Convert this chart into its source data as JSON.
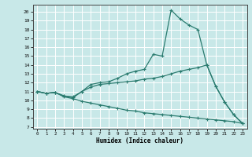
{
  "xlabel": "Humidex (Indice chaleur)",
  "bg_color": "#c8e8e8",
  "grid_color": "#ffffff",
  "line_color": "#2a7b6f",
  "xlim": [
    -0.5,
    23.5
  ],
  "ylim": [
    6.8,
    20.8
  ],
  "yticks": [
    7,
    8,
    9,
    10,
    11,
    12,
    13,
    14,
    15,
    16,
    17,
    18,
    19,
    20
  ],
  "xticks": [
    0,
    1,
    2,
    3,
    4,
    5,
    6,
    7,
    8,
    9,
    10,
    11,
    12,
    13,
    14,
    15,
    16,
    17,
    18,
    19,
    20,
    21,
    22,
    23
  ],
  "curve_max_x": [
    0,
    1,
    2,
    3,
    4,
    5,
    6,
    7,
    8,
    9,
    10,
    11,
    12,
    13,
    14,
    15,
    16,
    17,
    18,
    19,
    20,
    21,
    22,
    23
  ],
  "curve_max_y": [
    11.0,
    10.8,
    10.9,
    10.5,
    10.3,
    11.0,
    11.8,
    12.0,
    12.1,
    12.5,
    13.0,
    13.3,
    13.5,
    15.2,
    15.0,
    20.2,
    19.2,
    18.5,
    18.0,
    14.0,
    11.6,
    9.8,
    8.4,
    7.4
  ],
  "curve_mid_x": [
    0,
    1,
    2,
    3,
    4,
    5,
    6,
    7,
    8,
    9,
    10,
    11,
    12,
    13,
    14,
    15,
    16,
    17,
    18,
    19,
    20,
    21,
    22,
    23
  ],
  "curve_mid_y": [
    11.0,
    10.8,
    10.9,
    10.5,
    10.4,
    11.0,
    11.5,
    11.8,
    11.9,
    12.0,
    12.1,
    12.2,
    12.4,
    12.5,
    12.7,
    13.0,
    13.3,
    13.5,
    13.7,
    14.0,
    11.6,
    9.8,
    8.4,
    7.4
  ],
  "curve_min_x": [
    0,
    1,
    2,
    3,
    4,
    5,
    6,
    7,
    8,
    9,
    10,
    11,
    12,
    13,
    14,
    15,
    16,
    17,
    18,
    19,
    20,
    21,
    22,
    23
  ],
  "curve_min_y": [
    11.0,
    10.8,
    10.9,
    10.4,
    10.2,
    9.9,
    9.7,
    9.5,
    9.3,
    9.1,
    8.9,
    8.8,
    8.6,
    8.5,
    8.4,
    8.3,
    8.2,
    8.1,
    8.0,
    7.9,
    7.8,
    7.7,
    7.6,
    7.4
  ]
}
